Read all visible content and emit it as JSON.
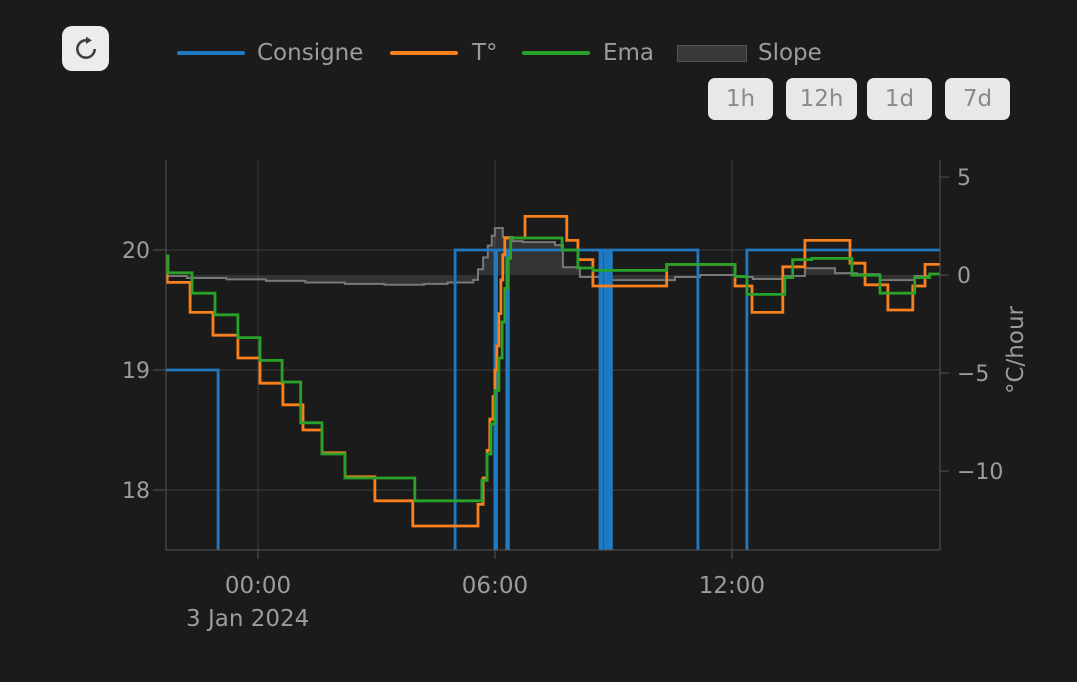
{
  "toolbar": {
    "refresh_icon": "refresh",
    "range_buttons": [
      {
        "label": "1h"
      },
      {
        "label": "12h"
      },
      {
        "label": "1d"
      },
      {
        "label": "7d"
      }
    ]
  },
  "legend": [
    {
      "name": "Consigne",
      "color": "#1f7ac2",
      "swatch": "line"
    },
    {
      "name": "T°",
      "color": "#f9801d",
      "swatch": "line"
    },
    {
      "name": "Ema",
      "color": "#28a228",
      "swatch": "line"
    },
    {
      "name": "Slope",
      "color": "#3a3a3a",
      "swatch": "area"
    }
  ],
  "colors": {
    "background": "#1b1b1b",
    "text": "#9c9c9c",
    "grid": "#3d3d3d",
    "axis": "#565656",
    "consigne": "#1f7ac2",
    "temperature": "#f9801d",
    "ema": "#28a228",
    "slope_line": "#787878",
    "slope_fill": "rgba(160,160,160,0.18)"
  },
  "chart_data": {
    "type": "line",
    "title": "",
    "x_axis": {
      "range_hours": [
        -2.33,
        17.27
      ],
      "ticks": [
        {
          "t": 0,
          "label": "00:00"
        },
        {
          "t": 6,
          "label": "06:00"
        },
        {
          "t": 12,
          "label": "12:00"
        }
      ],
      "date_label": "3 Jan 2024"
    },
    "y_axis_temp": {
      "range": [
        17.5,
        20.75
      ],
      "ticks": [
        {
          "v": 18,
          "label": "18"
        },
        {
          "v": 19,
          "label": "19"
        },
        {
          "v": 20,
          "label": "20"
        }
      ]
    },
    "y_axis_slope": {
      "title": "°C/hour",
      "range": [
        -14.03,
        5.87
      ],
      "ticks": [
        {
          "v": 5,
          "label": "5"
        },
        {
          "v": 0,
          "label": "0"
        },
        {
          "v": -5,
          "label": "−5"
        },
        {
          "v": -10,
          "label": "−10"
        }
      ]
    },
    "series": [
      {
        "name": "Consigne",
        "axis": "temp",
        "mode": "step",
        "points": [
          [
            -2.33,
            19
          ],
          [
            -1.01,
            16.8
          ],
          [
            4.99,
            20
          ],
          [
            6.0,
            16.8
          ],
          [
            6.04,
            20
          ],
          [
            6.3,
            16.8
          ],
          [
            6.34,
            20
          ],
          [
            8.66,
            16.8
          ],
          [
            8.7,
            20
          ],
          [
            8.78,
            16.8
          ],
          [
            8.83,
            20
          ],
          [
            8.9,
            16.8
          ],
          [
            8.95,
            20
          ],
          [
            11.14,
            16.8
          ],
          [
            12.38,
            20
          ]
        ]
      },
      {
        "name": "T°",
        "axis": "temp",
        "mode": "step",
        "points": [
          [
            -2.33,
            19.93
          ],
          [
            -2.3,
            19.73
          ],
          [
            -1.72,
            19.48
          ],
          [
            -1.14,
            19.29
          ],
          [
            -0.51,
            19.1
          ],
          [
            0.05,
            18.89
          ],
          [
            0.63,
            18.71
          ],
          [
            1.14,
            18.5
          ],
          [
            1.62,
            18.31
          ],
          [
            2.2,
            18.11
          ],
          [
            2.96,
            17.91
          ],
          [
            3.92,
            17.7
          ],
          [
            5.57,
            17.88
          ],
          [
            5.7,
            18.1
          ],
          [
            5.8,
            18.33
          ],
          [
            5.87,
            18.59
          ],
          [
            5.95,
            18.78
          ],
          [
            6.0,
            19.0
          ],
          [
            6.05,
            19.2
          ],
          [
            6.1,
            19.47
          ],
          [
            6.15,
            19.75
          ],
          [
            6.2,
            19.96
          ],
          [
            6.25,
            20.1
          ],
          [
            6.76,
            20.28
          ],
          [
            7.82,
            20.08
          ],
          [
            8.1,
            19.92
          ],
          [
            8.48,
            19.7
          ],
          [
            10.35,
            19.88
          ],
          [
            12.08,
            19.7
          ],
          [
            12.51,
            19.48
          ],
          [
            13.29,
            19.86
          ],
          [
            13.85,
            20.08
          ],
          [
            14.99,
            19.89
          ],
          [
            15.37,
            19.71
          ],
          [
            15.95,
            19.5
          ],
          [
            16.58,
            19.7
          ],
          [
            16.89,
            19.88
          ]
        ]
      },
      {
        "name": "Ema",
        "axis": "temp",
        "mode": "step",
        "points": [
          [
            -2.33,
            19.95
          ],
          [
            -2.28,
            19.81
          ],
          [
            -1.67,
            19.64
          ],
          [
            -1.09,
            19.46
          ],
          [
            -0.51,
            19.27
          ],
          [
            0.05,
            19.08
          ],
          [
            0.61,
            18.9
          ],
          [
            1.08,
            18.56
          ],
          [
            1.62,
            18.3
          ],
          [
            2.2,
            18.1
          ],
          [
            3.97,
            17.91
          ],
          [
            5.67,
            18.08
          ],
          [
            5.8,
            18.3
          ],
          [
            5.9,
            18.55
          ],
          [
            6.0,
            18.83
          ],
          [
            6.1,
            19.1
          ],
          [
            6.18,
            19.4
          ],
          [
            6.25,
            19.68
          ],
          [
            6.32,
            19.93
          ],
          [
            6.4,
            20.1
          ],
          [
            7.7,
            20.0
          ],
          [
            8.1,
            19.85
          ],
          [
            8.48,
            19.83
          ],
          [
            10.35,
            19.88
          ],
          [
            12.08,
            19.78
          ],
          [
            12.38,
            19.63
          ],
          [
            13.34,
            19.77
          ],
          [
            13.54,
            19.92
          ],
          [
            14.02,
            19.93
          ],
          [
            15.04,
            19.79
          ],
          [
            15.75,
            19.64
          ],
          [
            16.63,
            19.77
          ],
          [
            17.01,
            19.8
          ]
        ]
      },
      {
        "name": "Slope",
        "axis": "slope",
        "mode": "step",
        "fill_to": 0,
        "points": [
          [
            -2.33,
            -0.05
          ],
          [
            -1.8,
            -0.15
          ],
          [
            -0.8,
            -0.22
          ],
          [
            0.2,
            -0.3
          ],
          [
            1.2,
            -0.38
          ],
          [
            2.2,
            -0.45
          ],
          [
            3.2,
            -0.5
          ],
          [
            4.2,
            -0.45
          ],
          [
            4.8,
            -0.38
          ],
          [
            5.45,
            -0.25
          ],
          [
            5.57,
            0.3
          ],
          [
            5.7,
            0.9
          ],
          [
            5.82,
            1.5
          ],
          [
            5.92,
            2.0
          ],
          [
            6.0,
            2.4
          ],
          [
            6.2,
            1.94
          ],
          [
            6.45,
            1.73
          ],
          [
            6.7,
            1.68
          ],
          [
            7.52,
            1.53
          ],
          [
            7.72,
            0.4
          ],
          [
            8.15,
            -0.1
          ],
          [
            8.78,
            -0.26
          ],
          [
            10.56,
            -0.1
          ],
          [
            11.19,
            0.0
          ],
          [
            12.08,
            -0.1
          ],
          [
            12.53,
            -0.2
          ],
          [
            13.34,
            -0.05
          ],
          [
            13.85,
            0.35
          ],
          [
            14.61,
            0.1
          ],
          [
            15.16,
            0.05
          ],
          [
            15.75,
            -0.26
          ],
          [
            16.63,
            -0.05
          ],
          [
            17.0,
            0.05
          ]
        ]
      }
    ]
  }
}
